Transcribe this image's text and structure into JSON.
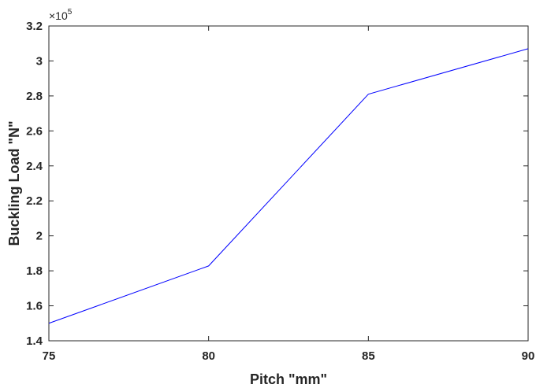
{
  "chart_data": {
    "type": "line",
    "title": "",
    "xlabel": "Pitch \"mm\"",
    "ylabel": "Buckling Load \"N\"",
    "x": [
      75,
      80,
      85,
      90
    ],
    "series": [
      {
        "values": [
          150000,
          182800,
          281000,
          307000
        ],
        "color": "#0000ff"
      }
    ],
    "xlim": [
      75,
      90
    ],
    "ylim": [
      140000,
      320000
    ],
    "x_ticks": [
      75,
      80,
      85,
      90
    ],
    "x_tick_labels": [
      "75",
      "80",
      "85",
      "90"
    ],
    "y_ticks": [
      140000,
      160000,
      180000,
      200000,
      220000,
      240000,
      260000,
      280000,
      300000,
      320000
    ],
    "y_tick_labels": [
      "1.4",
      "1.6",
      "1.8",
      "2",
      "2.2",
      "2.4",
      "2.6",
      "2.8",
      "3",
      "3.2"
    ],
    "y_multiplier_base": "×10",
    "y_multiplier_exponent": "5",
    "grid": false,
    "box": true
  }
}
